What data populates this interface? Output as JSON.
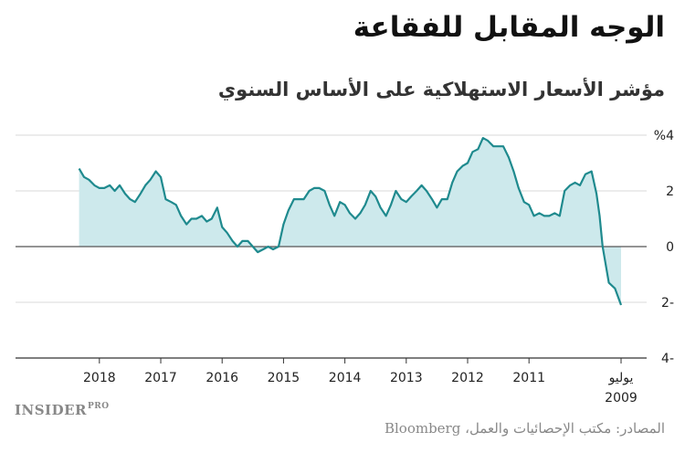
{
  "brand": {
    "name": "INSIDER",
    "suffix": "PRO"
  },
  "source": "المصادر: مكتب الإحصائيات والعمل، Bloomberg",
  "colors": {
    "line": "#1f8a8e",
    "area": "#cde9ec",
    "zero_line": "#555555",
    "grid": "#d9d9d9"
  },
  "chart_data": {
    "type": "area",
    "title": "الوجه المقابل للفقاعة",
    "subtitle": "مؤشر الأسعار الاستهلاكية على الأساس السنوي",
    "xlabel": "",
    "ylabel": "",
    "x_axis": "time, reversed (newest on the left)",
    "xlim": [
      2009.5,
      2018.667
    ],
    "ylim": [
      -4,
      4
    ],
    "yticks": [
      {
        "value": 4,
        "label": "%4"
      },
      {
        "value": 2,
        "label": "2"
      },
      {
        "value": 0,
        "label": "0"
      },
      {
        "value": -2,
        "label": "2-"
      },
      {
        "value": -4,
        "label": "4-"
      }
    ],
    "xticks": [
      {
        "value": 2009.5,
        "label": "يوليو",
        "label2": "2009"
      },
      {
        "value": 2011,
        "label": "2011"
      },
      {
        "value": 2012,
        "label": "2012"
      },
      {
        "value": 2013,
        "label": "2013"
      },
      {
        "value": 2014,
        "label": "2014"
      },
      {
        "value": 2015,
        "label": "2015"
      },
      {
        "value": 2016,
        "label": "2016"
      },
      {
        "value": 2017,
        "label": "2017"
      },
      {
        "value": 2018,
        "label": "2018"
      }
    ],
    "grid": "horizontal",
    "series": [
      {
        "name": "",
        "points": [
          [
            2009.5,
            -2.1
          ],
          [
            2009.6,
            -1.5
          ],
          [
            2009.7,
            -1.3
          ],
          [
            2009.8,
            0.0
          ],
          [
            2009.85,
            1.1
          ],
          [
            2009.9,
            1.9
          ],
          [
            2009.98,
            2.7
          ],
          [
            2010.08,
            2.6
          ],
          [
            2010.17,
            2.2
          ],
          [
            2010.25,
            2.3
          ],
          [
            2010.33,
            2.2
          ],
          [
            2010.42,
            2.0
          ],
          [
            2010.5,
            1.1
          ],
          [
            2010.58,
            1.2
          ],
          [
            2010.67,
            1.1
          ],
          [
            2010.75,
            1.1
          ],
          [
            2010.83,
            1.2
          ],
          [
            2010.92,
            1.1
          ],
          [
            2011.0,
            1.5
          ],
          [
            2011.08,
            1.6
          ],
          [
            2011.17,
            2.1
          ],
          [
            2011.25,
            2.7
          ],
          [
            2011.33,
            3.2
          ],
          [
            2011.42,
            3.6
          ],
          [
            2011.5,
            3.6
          ],
          [
            2011.58,
            3.6
          ],
          [
            2011.67,
            3.8
          ],
          [
            2011.75,
            3.9
          ],
          [
            2011.83,
            3.5
          ],
          [
            2011.92,
            3.4
          ],
          [
            2012.0,
            3.0
          ],
          [
            2012.08,
            2.9
          ],
          [
            2012.17,
            2.7
          ],
          [
            2012.25,
            2.3
          ],
          [
            2012.33,
            1.7
          ],
          [
            2012.42,
            1.7
          ],
          [
            2012.5,
            1.4
          ],
          [
            2012.58,
            1.7
          ],
          [
            2012.67,
            2.0
          ],
          [
            2012.75,
            2.2
          ],
          [
            2012.83,
            2.0
          ],
          [
            2012.92,
            1.8
          ],
          [
            2013.0,
            1.6
          ],
          [
            2013.08,
            1.7
          ],
          [
            2013.17,
            2.0
          ],
          [
            2013.25,
            1.5
          ],
          [
            2013.33,
            1.1
          ],
          [
            2013.42,
            1.4
          ],
          [
            2013.5,
            1.8
          ],
          [
            2013.58,
            2.0
          ],
          [
            2013.67,
            1.5
          ],
          [
            2013.75,
            1.2
          ],
          [
            2013.83,
            1.0
          ],
          [
            2013.92,
            1.2
          ],
          [
            2014.0,
            1.5
          ],
          [
            2014.08,
            1.6
          ],
          [
            2014.17,
            1.1
          ],
          [
            2014.25,
            1.5
          ],
          [
            2014.33,
            2.0
          ],
          [
            2014.42,
            2.1
          ],
          [
            2014.5,
            2.1
          ],
          [
            2014.58,
            2.0
          ],
          [
            2014.67,
            1.7
          ],
          [
            2014.75,
            1.7
          ],
          [
            2014.83,
            1.7
          ],
          [
            2014.92,
            1.3
          ],
          [
            2015.0,
            0.8
          ],
          [
            2015.08,
            0.0
          ],
          [
            2015.17,
            -0.1
          ],
          [
            2015.25,
            0.0
          ],
          [
            2015.33,
            -0.1
          ],
          [
            2015.42,
            -0.2
          ],
          [
            2015.5,
            0.0
          ],
          [
            2015.58,
            0.2
          ],
          [
            2015.67,
            0.2
          ],
          [
            2015.75,
            0.0
          ],
          [
            2015.83,
            0.2
          ],
          [
            2015.92,
            0.5
          ],
          [
            2016.0,
            0.7
          ],
          [
            2016.08,
            1.4
          ],
          [
            2016.17,
            1.0
          ],
          [
            2016.25,
            0.9
          ],
          [
            2016.33,
            1.1
          ],
          [
            2016.42,
            1.0
          ],
          [
            2016.5,
            1.0
          ],
          [
            2016.58,
            0.8
          ],
          [
            2016.67,
            1.1
          ],
          [
            2016.75,
            1.5
          ],
          [
            2016.83,
            1.6
          ],
          [
            2016.92,
            1.7
          ],
          [
            2017.0,
            2.5
          ],
          [
            2017.08,
            2.7
          ],
          [
            2017.17,
            2.4
          ],
          [
            2017.25,
            2.2
          ],
          [
            2017.33,
            1.9
          ],
          [
            2017.42,
            1.6
          ],
          [
            2017.5,
            1.7
          ],
          [
            2017.58,
            1.9
          ],
          [
            2017.67,
            2.2
          ],
          [
            2017.75,
            2.0
          ],
          [
            2017.83,
            2.2
          ],
          [
            2017.92,
            2.1
          ],
          [
            2018.0,
            2.1
          ],
          [
            2018.08,
            2.2
          ],
          [
            2018.17,
            2.4
          ],
          [
            2018.25,
            2.5
          ],
          [
            2018.33,
            2.8
          ]
        ]
      }
    ]
  }
}
